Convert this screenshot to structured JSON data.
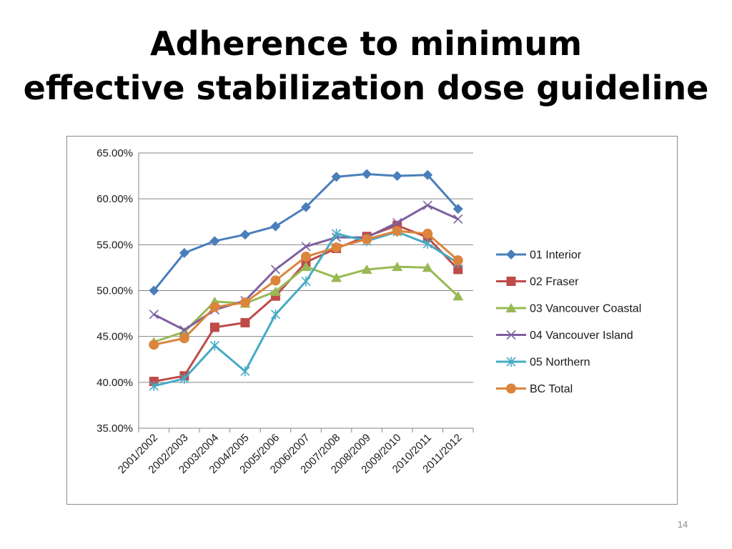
{
  "slide": {
    "title_line1": "Adherence to minimum",
    "title_line2": "effective stabilization dose guideline",
    "page_number": "14"
  },
  "chart_data": {
    "type": "line",
    "title": "",
    "xlabel": "",
    "ylabel": "",
    "categories": [
      "2001/2002",
      "2002/2003",
      "2003/2004",
      "2004/2005",
      "2005/2006",
      "2006/2007",
      "2007/2008",
      "2008/2009",
      "2009/2010",
      "2010/2011",
      "2011/2012"
    ],
    "ylim": [
      0.35,
      0.65
    ],
    "yticks": [
      0.35,
      0.4,
      0.45,
      0.5,
      0.55,
      0.6,
      0.65
    ],
    "ytick_labels": [
      "35.00%",
      "40.00%",
      "45.00%",
      "50.00%",
      "55.00%",
      "60.00%",
      "65.00%"
    ],
    "grid": true,
    "legend_position": "right",
    "series": [
      {
        "name": "01 Interior",
        "color": "#4a7ebb",
        "marker": "diamond",
        "values": [
          0.5,
          0.541,
          0.554,
          0.561,
          0.57,
          0.591,
          0.624,
          0.627,
          0.625,
          0.626,
          0.589
        ]
      },
      {
        "name": "02 Fraser",
        "color": "#be4b48",
        "marker": "square",
        "values": [
          0.401,
          0.407,
          0.46,
          0.465,
          0.494,
          0.531,
          0.546,
          0.559,
          0.571,
          0.558,
          0.523
        ]
      },
      {
        "name": "03 Vancouver Coastal",
        "color": "#98b954",
        "marker": "triangle",
        "values": [
          0.444,
          0.455,
          0.488,
          0.486,
          0.499,
          0.526,
          0.514,
          0.523,
          0.526,
          0.525,
          0.494
        ]
      },
      {
        "name": "04 Vancouver Island",
        "color": "#7d60a0",
        "marker": "x",
        "values": [
          0.474,
          0.457,
          0.479,
          0.489,
          0.523,
          0.548,
          0.558,
          0.558,
          0.574,
          0.593,
          0.578
        ]
      },
      {
        "name": "05 Northern",
        "color": "#46aac5",
        "marker": "star",
        "values": [
          0.396,
          0.404,
          0.44,
          0.412,
          0.474,
          0.51,
          0.562,
          0.554,
          0.564,
          0.551,
          0.53
        ]
      },
      {
        "name": "BC Total",
        "color": "#db843d",
        "marker": "circle",
        "values": [
          0.441,
          0.448,
          0.482,
          0.487,
          0.511,
          0.537,
          0.547,
          0.556,
          0.565,
          0.562,
          0.533
        ]
      }
    ]
  }
}
